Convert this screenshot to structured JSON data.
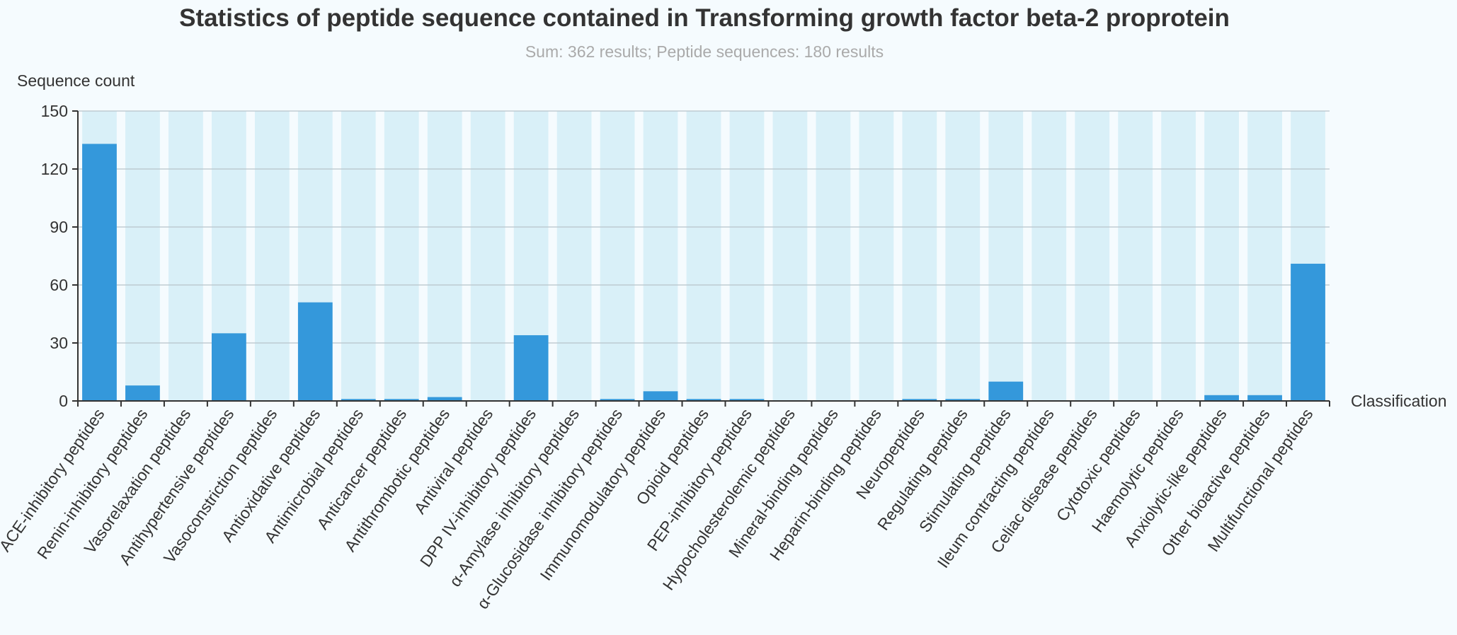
{
  "chart_data": {
    "type": "bar",
    "title": "Statistics of peptide sequence contained in Transforming growth factor beta-2 proprotein",
    "subtitle": "Sum: 362 results; Peptide sequences: 180 results",
    "ylabel": "Sequence count",
    "xlabel": "Classification",
    "ylim": [
      0,
      150
    ],
    "yticks": [
      0,
      30,
      60,
      90,
      120,
      150
    ],
    "grid": true,
    "background_bar": true,
    "categories": [
      "ACE-inhibitory peptides",
      "Renin-inhibitory peptides",
      "Vasorelaxation peptides",
      "Antihypertensive peptides",
      "Vasoconstriction peptides",
      "Antioxidative peptides",
      "Antimicrobial peptides",
      "Anticancer peptides",
      "Antithrombotic peptides",
      "Antiviral peptides",
      "DPP IV-inhibitory peptides",
      "α-Amylase inhibitory peptides",
      "α-Glucosidase inhibitory peptides",
      "Immunomodulatory peptides",
      "Opioid peptides",
      "PEP-inhibitory peptides",
      "Hypocholesterolemic peptides",
      "Mineral-binding peptides",
      "Heparin-binding peptides",
      "Neuropeptides",
      "Regulating peptides",
      "Stimulating peptides",
      "Ileum contracting peptides",
      "Celiac disease peptides",
      "Cytotoxic peptides",
      "Haemolytic peptides",
      "Anxiolytic-like peptides",
      "Other bioactive peptides",
      "Multifunctional peptides"
    ],
    "values": [
      133,
      8,
      0,
      35,
      0,
      51,
      1,
      1,
      2,
      0,
      34,
      0,
      1,
      5,
      1,
      1,
      0,
      0,
      0,
      1,
      1,
      10,
      0,
      0,
      0,
      0,
      3,
      3,
      71
    ],
    "colors": {
      "bar": "#3498db",
      "background_bar": "#d9f0f8",
      "grid": "#b7c3c9",
      "axis": "#333333"
    }
  }
}
